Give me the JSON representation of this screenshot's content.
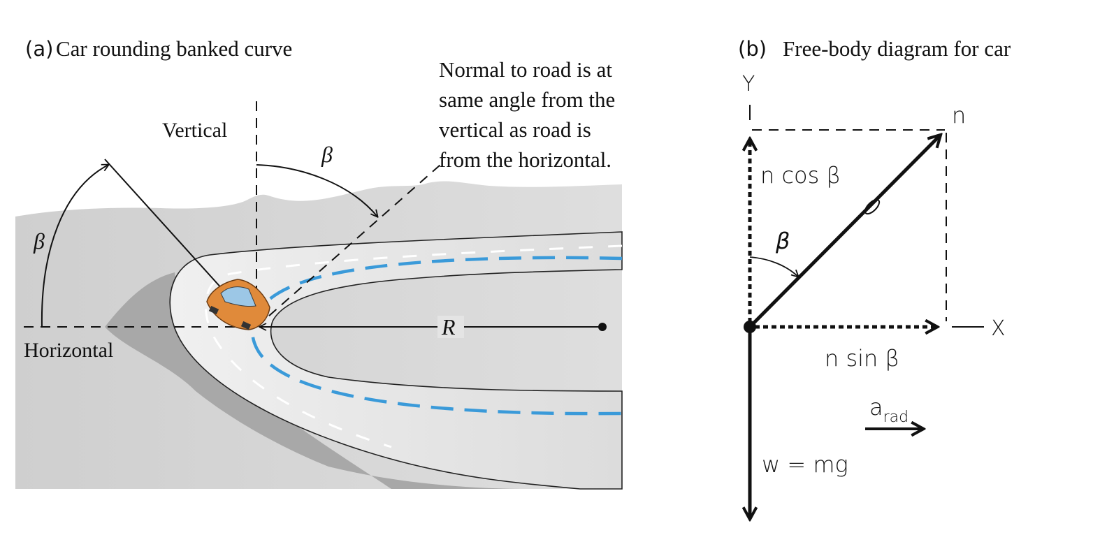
{
  "panel_a": {
    "tag": "(a)",
    "title": "Car rounding banked curve",
    "vertical_label": "Vertical",
    "horizontal_label": "Horizontal",
    "beta_label": "β",
    "beta_label_2": "β",
    "radius_label": "R",
    "note_lines": [
      "Normal to road is at",
      "same angle from the",
      "vertical as road is",
      "from the horizontal."
    ]
  },
  "panel_b": {
    "tag": "(b)",
    "title": "Free-body diagram for car",
    "y_axis": "Y",
    "x_axis": "X",
    "normal_label": "n",
    "n_cos_label": "n cos β",
    "n_sin_label": "n sin β",
    "beta_label": "β",
    "weight_label": "w = mg",
    "accel_main": "a",
    "accel_sub": "rad"
  },
  "colors": {
    "ink": "#111111",
    "ground": "#d6d6d6",
    "road": "#e6e6e6",
    "shadow": "#9e9e9e",
    "path_blue": "#3a9ad9",
    "car_orange": "#e08a3a"
  }
}
